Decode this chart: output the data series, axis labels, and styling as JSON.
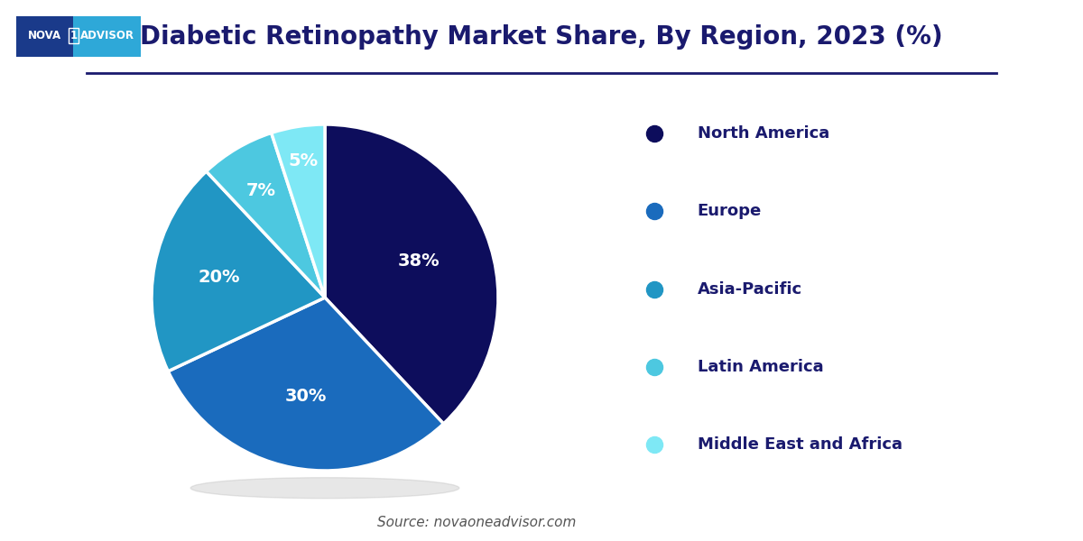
{
  "title": "Diabetic Retinopathy Market Share, By Region, 2023 (%)",
  "title_color": "#1a1a6e",
  "title_fontsize": 20,
  "source_text": "Source: novaoneadvisor.com",
  "labels": [
    "North America",
    "Europe",
    "Asia-Pacific",
    "Latin America",
    "Middle East and Africa"
  ],
  "values": [
    38,
    30,
    20,
    7,
    5
  ],
  "colors": [
    "#0d0d5c",
    "#1a6bbd",
    "#2196c4",
    "#4dc8e0",
    "#7ee8f5"
  ],
  "pct_labels": [
    "38%",
    "30%",
    "20%",
    "7%",
    "5%"
  ],
  "background_color": "#ffffff",
  "separator_line_color": "#1a1a6e",
  "logo_bg_left": "#1a3a8a",
  "logo_bg_right": "#2ea8d8",
  "legend_text_color": "#1a1a6e",
  "figsize": [
    12,
    6
  ],
  "dpi": 100
}
